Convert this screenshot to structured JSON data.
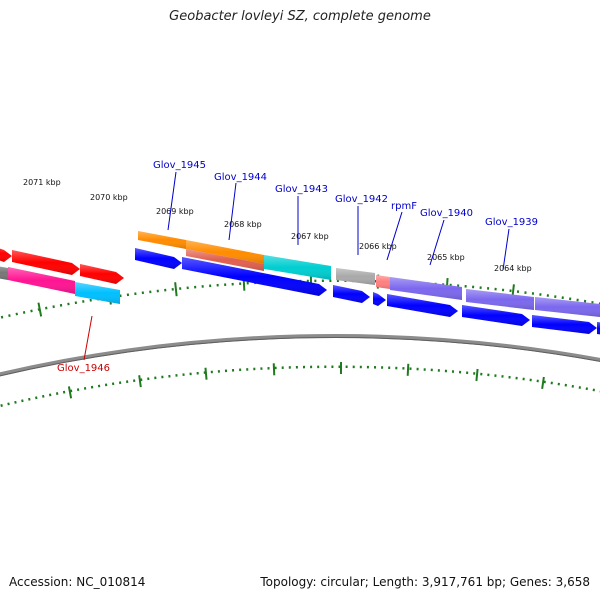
{
  "title": "Geobacter lovleyi SZ, complete genome",
  "footer": {
    "accession": "Accession: NC_010814",
    "stats": "Topology: circular; Length: 3,917,761 bp; Genes: 3,658"
  },
  "colors": {
    "backbone": "#7d7d7d",
    "tick": "#1f7a1f",
    "label_default": "#0000cc",
    "label_highlight": "#cc0000",
    "leader": "#0000cc"
  },
  "ticks": [
    {
      "label": "2071 kbp"
    },
    {
      "label": "2070 kbp"
    },
    {
      "label": "2069 kbp"
    },
    {
      "label": "2068 kbp"
    },
    {
      "label": "2067 kbp"
    },
    {
      "label": "2066 kbp"
    },
    {
      "label": "2065 kbp"
    },
    {
      "label": "2064 kbp"
    }
  ],
  "gene_labels": [
    {
      "name": "Glov_1946",
      "color": "#cc0000"
    },
    {
      "name": "Glov_1945",
      "color": "#0000cc"
    },
    {
      "name": "Glov_1944",
      "color": "#0000cc"
    },
    {
      "name": "Glov_1943",
      "color": "#0000cc"
    },
    {
      "name": "Glov_1942",
      "color": "#0000cc"
    },
    {
      "name": "rpmF",
      "color": "#0000cc"
    },
    {
      "name": "Glov_1940",
      "color": "#0000cc"
    },
    {
      "name": "Glov_1939",
      "color": "#0000cc"
    }
  ],
  "features": {
    "outer_cog": [
      {
        "color": "#ff0000"
      },
      {
        "color": "#ff0000"
      },
      {
        "color": "#ff0000"
      },
      {
        "color": "#ff8c00"
      },
      {
        "color": "#ff8c00"
      },
      {
        "color": "#00ced1"
      },
      {
        "color": "#a9a9a9"
      },
      {
        "color": "#ff7f7f"
      },
      {
        "color": "#7b68ee"
      },
      {
        "color": "#7b68ee"
      },
      {
        "color": "#7b68ee"
      }
    ],
    "inner_cog": [
      {
        "color": "#777777"
      },
      {
        "color": "#ff1493"
      },
      {
        "color": "#00bfff"
      }
    ],
    "cds": [
      {
        "color": "#0000ff"
      },
      {
        "color": "#0000ff"
      },
      {
        "color": "#0000ff"
      },
      {
        "color": "#0000ff"
      },
      {
        "color": "#0000ff"
      },
      {
        "color": "#0000ff"
      },
      {
        "color": "#0000ff"
      },
      {
        "color": "#0000ff"
      }
    ]
  }
}
